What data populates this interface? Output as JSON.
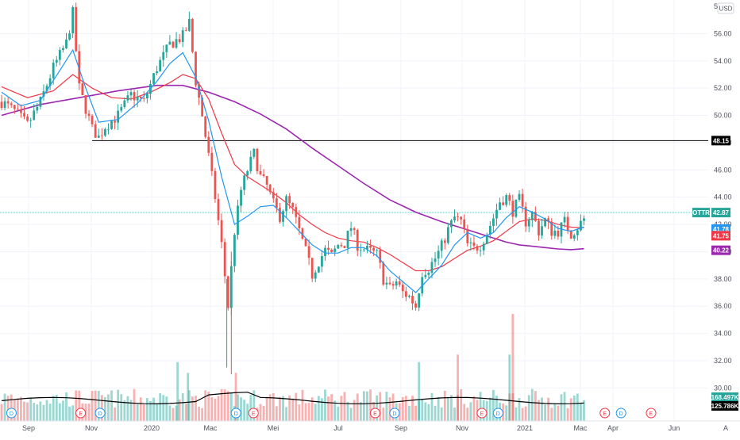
{
  "currency": "USD",
  "scale_mode_label": "A",
  "colors": {
    "up": "#26a69a",
    "down": "#ef5350",
    "ema_fast": "#2196f3",
    "ema_mid": "#f23645",
    "ma_slow": "#9c27b0",
    "vol_ma": "#000000",
    "hline": "#000000",
    "last_price_line": "#26a69a",
    "grid": "#f0f3fa"
  },
  "chart_data": {
    "type": "candlestick",
    "title": "",
    "ticker": "OTTR",
    "y_axis": {
      "range": [
        28.8,
        58.0
      ],
      "ticks": [
        "30.00",
        "32.00",
        "34.00",
        "36.00",
        "38.00",
        "40.00",
        "42.00",
        "44.00",
        "46.00",
        "48.00",
        "50.00",
        "52.00",
        "54.00",
        "56.00"
      ],
      "top_partial_tick": "58"
    },
    "x_axis": {
      "ticks": [
        "Sep",
        "Nov",
        "2020",
        "Mac",
        "Mei",
        "Jul",
        "Sep",
        "Nov",
        "2021",
        "Mac",
        "Apr",
        "Jun"
      ]
    },
    "horizontal_line": {
      "value": 48.15,
      "label": "48.15"
    },
    "price_labels": [
      {
        "name": "last-price-label",
        "prefix": "OTTR",
        "value": 42.87,
        "label": "42.87",
        "color": "#26a69a"
      },
      {
        "name": "ema-fast-label",
        "value": 41.78,
        "label": "41.78",
        "color": "#2196f3"
      },
      {
        "name": "ema-mid-label",
        "value": 41.75,
        "label": "41.75",
        "color": "#f23645"
      },
      {
        "name": "ma-slow-label",
        "value": 40.22,
        "label": "40.22",
        "color": "#9c27b0"
      }
    ],
    "volume_labels": [
      {
        "name": "volume-label",
        "label": "168.497K",
        "color": "#26a69a"
      },
      {
        "name": "volume-ma-label",
        "label": "125.786K",
        "color": "#000000"
      }
    ],
    "event_markers": [
      {
        "type": "dividend",
        "letter": "D",
        "t": 0.3
      },
      {
        "type": "earnings",
        "letter": "E",
        "t": 11
      },
      {
        "type": "dividend",
        "letter": "D",
        "t": 14
      },
      {
        "type": "dividend",
        "letter": "D",
        "t": 35
      },
      {
        "type": "earnings",
        "letter": "E",
        "t": 37.7
      },
      {
        "type": "earnings",
        "letter": "E",
        "t": 56.5
      },
      {
        "type": "dividend",
        "letter": "D",
        "t": 59.5
      },
      {
        "type": "earnings",
        "letter": "E",
        "t": 73
      },
      {
        "type": "dividend",
        "letter": "D",
        "t": 75.5
      },
      {
        "type": "earnings",
        "letter": "E",
        "t": 92
      },
      {
        "type": "dividend",
        "letter": "D",
        "t": 94.5
      },
      {
        "type": "earnings",
        "letter": "E",
        "t": 110.5
      },
      {
        "type": "dividend",
        "letter": "D",
        "t": 113.5
      },
      {
        "type": "earnings",
        "letter": "E",
        "t": 129.5
      }
    ],
    "price_path": [
      [
        0,
        51.0
      ],
      [
        2,
        50.3
      ],
      [
        4,
        49.3
      ],
      [
        6,
        51.0
      ],
      [
        8,
        53.5
      ],
      [
        10,
        55.3
      ],
      [
        11,
        57.5
      ],
      [
        12,
        52.0
      ],
      [
        14,
        49.0
      ],
      [
        15,
        48.4
      ],
      [
        16,
        49.2
      ],
      [
        18,
        50.0
      ],
      [
        20,
        51.5
      ],
      [
        22,
        51.0
      ],
      [
        24,
        53.5
      ],
      [
        26,
        55.2
      ],
      [
        28,
        55.8
      ],
      [
        29,
        56.8
      ],
      [
        30,
        52.5
      ],
      [
        31,
        50.0
      ],
      [
        32,
        47.0
      ],
      [
        33,
        44.0
      ],
      [
        34,
        40.5
      ],
      [
        35,
        36.0
      ],
      [
        36,
        41.5
      ],
      [
        37,
        44.5
      ],
      [
        38,
        46.0
      ],
      [
        39,
        47.2
      ],
      [
        40,
        45.5
      ],
      [
        41,
        44.8
      ],
      [
        42,
        43.5
      ],
      [
        43,
        42.6
      ],
      [
        44,
        43.8
      ],
      [
        45,
        43.0
      ],
      [
        46,
        41.5
      ],
      [
        47,
        40.0
      ],
      [
        48,
        38.3
      ],
      [
        49,
        39.3
      ],
      [
        50,
        40.1
      ],
      [
        51,
        39.7
      ],
      [
        52,
        40.5
      ],
      [
        53,
        40.6
      ],
      [
        54,
        41.8
      ],
      [
        55,
        40.5
      ],
      [
        56,
        40.2
      ],
      [
        57,
        40.0
      ],
      [
        58,
        39.8
      ],
      [
        59,
        38.0
      ],
      [
        60,
        37.3
      ],
      [
        61,
        37.8
      ],
      [
        62,
        37.0
      ],
      [
        63,
        36.7
      ],
      [
        64,
        36.0
      ],
      [
        65,
        38.5
      ],
      [
        66,
        38.8
      ],
      [
        67,
        39.5
      ],
      [
        68,
        40.4
      ],
      [
        69,
        41.6
      ],
      [
        70,
        42.5
      ],
      [
        71,
        42.2
      ],
      [
        72,
        40.5
      ],
      [
        73,
        40.2
      ],
      [
        74,
        40.5
      ],
      [
        75,
        41.4
      ],
      [
        76,
        42.5
      ],
      [
        77,
        43.7
      ],
      [
        78,
        44.0
      ],
      [
        79,
        43.0
      ],
      [
        80,
        43.8
      ],
      [
        81,
        42.2
      ],
      [
        82,
        42.8
      ],
      [
        83,
        41.5
      ],
      [
        84,
        42.3
      ],
      [
        85,
        41.5
      ],
      [
        86,
        41.5
      ],
      [
        87,
        42.2
      ],
      [
        88,
        41.3
      ],
      [
        89,
        41.8
      ],
      [
        90,
        42.4
      ]
    ],
    "ema_fast_path": [
      [
        0,
        51.7
      ],
      [
        3,
        50.7
      ],
      [
        6,
        51.1
      ],
      [
        9,
        53.3
      ],
      [
        11,
        54.8
      ],
      [
        13,
        52.0
      ],
      [
        15,
        49.5
      ],
      [
        18,
        49.7
      ],
      [
        21,
        50.9
      ],
      [
        24,
        52.5
      ],
      [
        26,
        53.8
      ],
      [
        28,
        54.6
      ],
      [
        30,
        52.8
      ],
      [
        32,
        49.6
      ],
      [
        34,
        45.5
      ],
      [
        36,
        42.0
      ],
      [
        38,
        42.6
      ],
      [
        40,
        43.3
      ],
      [
        42,
        43.4
      ],
      [
        44,
        42.5
      ],
      [
        46,
        41.5
      ],
      [
        48,
        40.5
      ],
      [
        50,
        39.9
      ],
      [
        52,
        39.9
      ],
      [
        54,
        40.3
      ],
      [
        56,
        40.3
      ],
      [
        58,
        39.7
      ],
      [
        60,
        38.6
      ],
      [
        62,
        37.8
      ],
      [
        64,
        37.0
      ],
      [
        66,
        38.0
      ],
      [
        68,
        39.0
      ],
      [
        70,
        40.5
      ],
      [
        72,
        41.4
      ],
      [
        74,
        41.0
      ],
      [
        76,
        41.4
      ],
      [
        78,
        42.5
      ],
      [
        80,
        43.3
      ],
      [
        82,
        42.9
      ],
      [
        84,
        42.4
      ],
      [
        86,
        41.7
      ],
      [
        88,
        41.5
      ],
      [
        90,
        41.8
      ]
    ],
    "ema_mid_path": [
      [
        0,
        52.1
      ],
      [
        4,
        51.3
      ],
      [
        8,
        51.8
      ],
      [
        11,
        53.0
      ],
      [
        14,
        52.0
      ],
      [
        17,
        51.3
      ],
      [
        20,
        51.2
      ],
      [
        23,
        51.7
      ],
      [
        26,
        52.4
      ],
      [
        28,
        53.0
      ],
      [
        30,
        52.7
      ],
      [
        32,
        51.2
      ],
      [
        34,
        48.7
      ],
      [
        36,
        46.4
      ],
      [
        38,
        45.5
      ],
      [
        40,
        44.9
      ],
      [
        42,
        44.3
      ],
      [
        44,
        43.6
      ],
      [
        46,
        42.7
      ],
      [
        48,
        42.0
      ],
      [
        50,
        41.4
      ],
      [
        52,
        41.0
      ],
      [
        54,
        40.8
      ],
      [
        56,
        40.7
      ],
      [
        58,
        40.3
      ],
      [
        60,
        39.8
      ],
      [
        62,
        39.2
      ],
      [
        64,
        38.6
      ],
      [
        66,
        38.6
      ],
      [
        68,
        38.9
      ],
      [
        70,
        39.5
      ],
      [
        72,
        40.1
      ],
      [
        74,
        40.4
      ],
      [
        76,
        40.8
      ],
      [
        78,
        41.5
      ],
      [
        80,
        42.2
      ],
      [
        82,
        42.4
      ],
      [
        84,
        42.3
      ],
      [
        86,
        42.0
      ],
      [
        88,
        41.8
      ],
      [
        90,
        41.75
      ]
    ],
    "ma_slow_path": [
      [
        0,
        50.0
      ],
      [
        6,
        50.8
      ],
      [
        12,
        51.3
      ],
      [
        18,
        51.8
      ],
      [
        24,
        52.2
      ],
      [
        28,
        52.2
      ],
      [
        32,
        51.7
      ],
      [
        36,
        51.0
      ],
      [
        40,
        50.1
      ],
      [
        44,
        49.0
      ],
      [
        48,
        47.6
      ],
      [
        52,
        46.3
      ],
      [
        56,
        45.0
      ],
      [
        60,
        43.8
      ],
      [
        64,
        42.9
      ],
      [
        68,
        42.2
      ],
      [
        72,
        41.6
      ],
      [
        76,
        41.0
      ],
      [
        78,
        40.7
      ],
      [
        80,
        40.5
      ],
      [
        82,
        40.4
      ],
      [
        84,
        40.3
      ],
      [
        86,
        40.2
      ],
      [
        88,
        40.15
      ],
      [
        90,
        40.22
      ]
    ],
    "volume_spikes": [
      {
        "t": 27.2,
        "rel": 0.55,
        "up": true
      },
      {
        "t": 28.8,
        "rel": 0.45,
        "up": true
      },
      {
        "t": 36.2,
        "rel": 0.45,
        "up": false
      },
      {
        "t": 64.5,
        "rel": 0.55,
        "up": true
      },
      {
        "t": 70.5,
        "rel": 0.62,
        "up": false
      },
      {
        "t": 78.5,
        "rel": 0.62,
        "up": true
      },
      {
        "t": 79.0,
        "rel": 1.0,
        "up": false
      }
    ]
  }
}
